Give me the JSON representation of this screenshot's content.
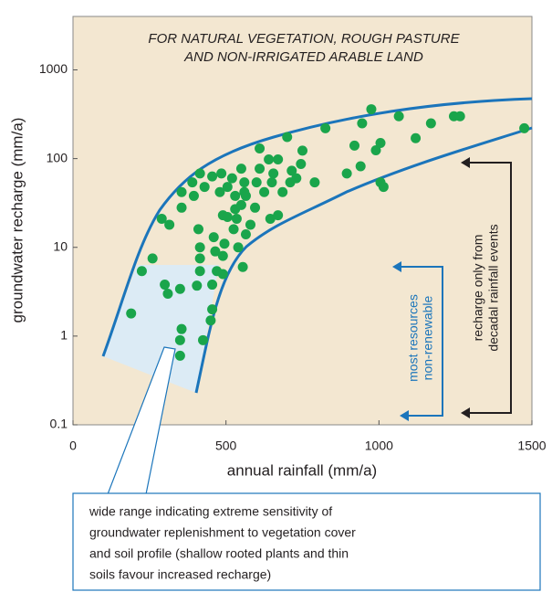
{
  "chart_data": {
    "type": "scatter",
    "title": [
      "FOR NATURAL VEGETATION, ROUGH PASTURE",
      "AND NON-IRRIGATED ARABLE LAND"
    ],
    "x_label": "annual rainfall (mm/a)",
    "y_label": "groundwater recharge (mm/a)",
    "xlim": [
      0,
      1500
    ],
    "ylim": [
      0.1,
      4000
    ],
    "ylog": true,
    "xticks": [
      0,
      500,
      1000,
      1500
    ],
    "yticks": [
      0.1,
      1,
      10,
      100,
      1000
    ],
    "color": "#1aa54b",
    "x": [
      190,
      225,
      260,
      290,
      315,
      300,
      310,
      350,
      355,
      350,
      350,
      405,
      425,
      450,
      455,
      455,
      355,
      355,
      390,
      395,
      410,
      415,
      415,
      415,
      460,
      465,
      470,
      490,
      490,
      495,
      490,
      480,
      455,
      485,
      505,
      520,
      530,
      530,
      535,
      550,
      560,
      550,
      560,
      565,
      525,
      540,
      555,
      580,
      595,
      600,
      610,
      610,
      640,
      625,
      650,
      655,
      670,
      685,
      710,
      715,
      730,
      745,
      750,
      645,
      670,
      700,
      790,
      825,
      920,
      895,
      940,
      945,
      975,
      990,
      1005,
      1005,
      1015,
      1065,
      1120,
      1170,
      1245,
      1265,
      1475,
      415,
      430,
      505,
      565
    ],
    "y": [
      1.8,
      5.4,
      7.5,
      21,
      18,
      3.8,
      3.0,
      3.4,
      1.2,
      0.9,
      0.6,
      3.7,
      0.9,
      1.5,
      2.0,
      3.8,
      28,
      42,
      54,
      38,
      16,
      10,
      7.5,
      5.4,
      13,
      9,
      5.4,
      8,
      5,
      11,
      23,
      42,
      63,
      68,
      48,
      60,
      38,
      27,
      21,
      30,
      42,
      77,
      54,
      38,
      16,
      10,
      6,
      18,
      28,
      54,
      77,
      130,
      98,
      42,
      54,
      68,
      98,
      42,
      54,
      73,
      60,
      87,
      123,
      21,
      23,
      175,
      54,
      220,
      140,
      68,
      82,
      250,
      360,
      124,
      150,
      54,
      48,
      300,
      170,
      250,
      300,
      300,
      220,
      68,
      48,
      22,
      14
    ],
    "annotations": [
      [
        "most resources",
        "non-renewable"
      ],
      [
        "recharge only from",
        "decadal rainfall events"
      ],
      [
        "wide range indicating extreme sensitivity of",
        "groundwater replenishment to vegetation cover",
        "and soil profile (shallow rooted plants and thin",
        "soils favour increased recharge)"
      ]
    ]
  }
}
